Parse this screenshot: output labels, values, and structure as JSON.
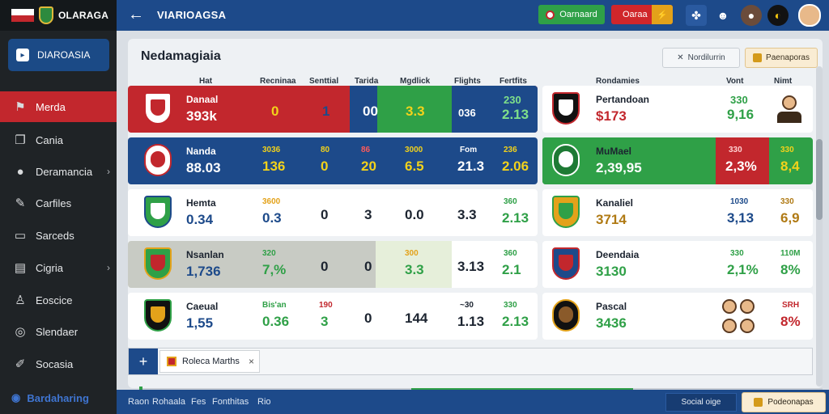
{
  "app": {
    "title": "OLARAGA"
  },
  "sidebar": {
    "primary_button": "DIAROASIA",
    "items": [
      {
        "label": "Merda",
        "icon": "flag-icon",
        "active": true
      },
      {
        "label": "Cania",
        "icon": "book-icon"
      },
      {
        "label": "Deramancia",
        "icon": "person-icon",
        "chevron": true
      },
      {
        "label": "Carfiles",
        "icon": "pencil-icon"
      },
      {
        "label": "Sarceds",
        "icon": "monitor-icon"
      },
      {
        "label": "Cigria",
        "icon": "document-icon",
        "chevron": true
      },
      {
        "label": "Eoscice",
        "icon": "user-icon"
      },
      {
        "label": "Slendaer",
        "icon": "target-icon"
      },
      {
        "label": "Socasia",
        "icon": "edit-icon"
      }
    ],
    "footer_label": "Bardaharing"
  },
  "topbar": {
    "page_name": "VIARIOAGSA",
    "green_button": "Oarnaard",
    "red_button": "Oaraa",
    "icons": [
      "puzzle-icon",
      "game-icon",
      "profile-icon",
      "ball-icon",
      "avatar-icon"
    ]
  },
  "panel": {
    "title": "Nedamagiaia",
    "sub_button": "Nordilurrin",
    "save_button": "Paenaporas"
  },
  "left_table": {
    "headers": [
      "Hat",
      "Recninaa",
      "Senttial",
      "Tarida",
      "Mgdlick",
      "Flights",
      "Fertfits"
    ],
    "rows": [
      {
        "team": "Danaal",
        "score": "393k",
        "c1": "",
        "c2": "0",
        "c3": "1",
        "c4": "00",
        "c5": "3.3",
        "c6": "036",
        "c7a": "230",
        "c7": "2.13",
        "bg": "#c2272d"
      },
      {
        "team": "Nanda",
        "score": "88.03",
        "c1a": "3036",
        "c1": "136",
        "c2a": "80",
        "c2": "0",
        "c3a": "86",
        "c3": "20",
        "c4a": "3000",
        "c4": "6.5",
        "c5a": "Fom",
        "c5": "21.3",
        "c6a": "236",
        "c6": "2.06",
        "bg": "#1d4a8a"
      },
      {
        "team": "Hemta",
        "score": "0.34",
        "c1a": "3600",
        "c1": "0.3",
        "c2": "0",
        "c3": "3",
        "c4": "0.0",
        "c5": "3.3",
        "c6a": "360",
        "c6": "2.13",
        "bg": "#ffffff"
      },
      {
        "team": "Nsanlan",
        "score": "1,736",
        "c1a": "320",
        "c1": "7,%",
        "c2": "0",
        "c3": "0",
        "c4a": "300",
        "c4": "3.3",
        "c5": "3.13",
        "c6a": "360",
        "c6": "2.1",
        "bg": "#ffffff"
      },
      {
        "team": "Caeual",
        "score": "1,55",
        "c1a": "Bis'an",
        "c1": "0.36",
        "c2a": "190",
        "c2": "3",
        "c3": "0",
        "c4": "144",
        "c5a": "~30",
        "c5": "1.13",
        "c6a": "330",
        "c6": "2.13",
        "bg": "#ffffff"
      }
    ]
  },
  "right_table": {
    "headers": [
      "Rondamies",
      "Vont",
      "Nimt"
    ],
    "rows": [
      {
        "team": "Pertandoan",
        "value": "$173",
        "a1": "330",
        "a2": "9,16",
        "bg": "#ffffff"
      },
      {
        "team": "MuMael",
        "value": "2,39,95",
        "a1a": "330",
        "a1": "2,3%",
        "a2a": "330",
        "a2": "8,4",
        "bg": "#2fa047"
      },
      {
        "team": "Kanaliel",
        "value": "3714",
        "a1a": "1030",
        "a1": "3,13",
        "a2a": "330",
        "a2": "6,9",
        "bg": "#ffffff"
      },
      {
        "team": "Deendaia",
        "value": "3130",
        "a1a": "330",
        "a1": "2,1%",
        "a2a": "110M",
        "a2": "8%",
        "bg": "#ffffff"
      },
      {
        "team": "Pascal",
        "value": "3436",
        "a1": "",
        "a2a": "SRH",
        "a2": "8%",
        "bg": "#ffffff"
      }
    ]
  },
  "bottom": {
    "tab_label": "Roleca Marths",
    "add_tab": "+",
    "close": "×"
  },
  "footer": {
    "links": [
      "Raon",
      "Rohaala",
      "Fes",
      "Fonthitas",
      "Rio"
    ],
    "button": "Social oige",
    "save_button": "Podeonapas"
  }
}
